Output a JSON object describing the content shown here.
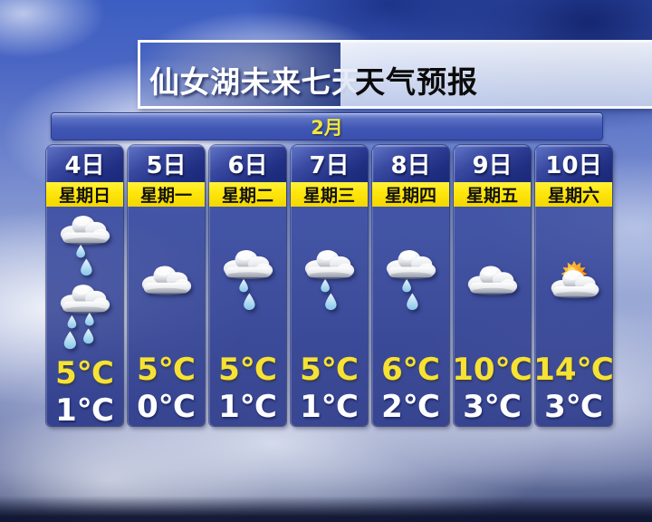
{
  "header": {
    "location_title": "仙女湖未来七天",
    "report_title": "天气预报"
  },
  "calendar": {
    "month_label": "2月"
  },
  "forecast": {
    "days": [
      {
        "date": "4日",
        "weekday": "星期日",
        "icons": [
          "rain",
          "rain_heavy"
        ],
        "high": "5℃",
        "low": "1℃"
      },
      {
        "date": "5日",
        "weekday": "星期一",
        "icons": [
          "cloudy"
        ],
        "high": "5℃",
        "low": "0℃"
      },
      {
        "date": "6日",
        "weekday": "星期二",
        "icons": [
          "rain"
        ],
        "high": "5℃",
        "low": "1℃"
      },
      {
        "date": "7日",
        "weekday": "星期三",
        "icons": [
          "rain"
        ],
        "high": "5℃",
        "low": "1℃"
      },
      {
        "date": "8日",
        "weekday": "星期四",
        "icons": [
          "rain"
        ],
        "high": "6℃",
        "low": "2℃"
      },
      {
        "date": "9日",
        "weekday": "星期五",
        "icons": [
          "cloudy"
        ],
        "high": "10℃",
        "low": "3℃"
      },
      {
        "date": "10日",
        "weekday": "星期六",
        "icons": [
          "sun_cloud"
        ],
        "high": "14℃",
        "low": "3℃"
      }
    ],
    "icon_names": {
      "rain": "cloud-light-rain-icon",
      "rain_heavy": "cloud-moderate-rain-icon",
      "cloudy": "cloud-icon",
      "sun_cloud": "sun-behind-cloud-icon"
    }
  },
  "colors": {
    "weekday_bar_yellow": "#ffe70d",
    "high_temp_yellow": "#f7e233",
    "low_temp_white": "#ffffff",
    "panel_blue": "#31449c",
    "date_header_navy": "#20307f",
    "month_text_yellow": "#efe63c"
  },
  "chart_data": {
    "type": "table",
    "title": "仙女湖未来七天 天气预报",
    "month": "2月",
    "columns": [
      "4日 星期日",
      "5日 星期一",
      "6日 星期二",
      "7日 星期三",
      "8日 星期四",
      "9日 星期五",
      "10日 星期六"
    ],
    "series": [
      {
        "name": "weather-condition-icons",
        "values": [
          "light-rain + moderate-rain",
          "cloudy",
          "light-rain",
          "light-rain",
          "light-rain",
          "cloudy",
          "sun-behind-cloud"
        ]
      },
      {
        "name": "high-temp-C",
        "values": [
          5,
          5,
          5,
          5,
          6,
          10,
          14
        ]
      },
      {
        "name": "low-temp-C",
        "values": [
          1,
          0,
          1,
          1,
          2,
          3,
          3
        ]
      }
    ],
    "legend_position": "none",
    "grid": false
  }
}
